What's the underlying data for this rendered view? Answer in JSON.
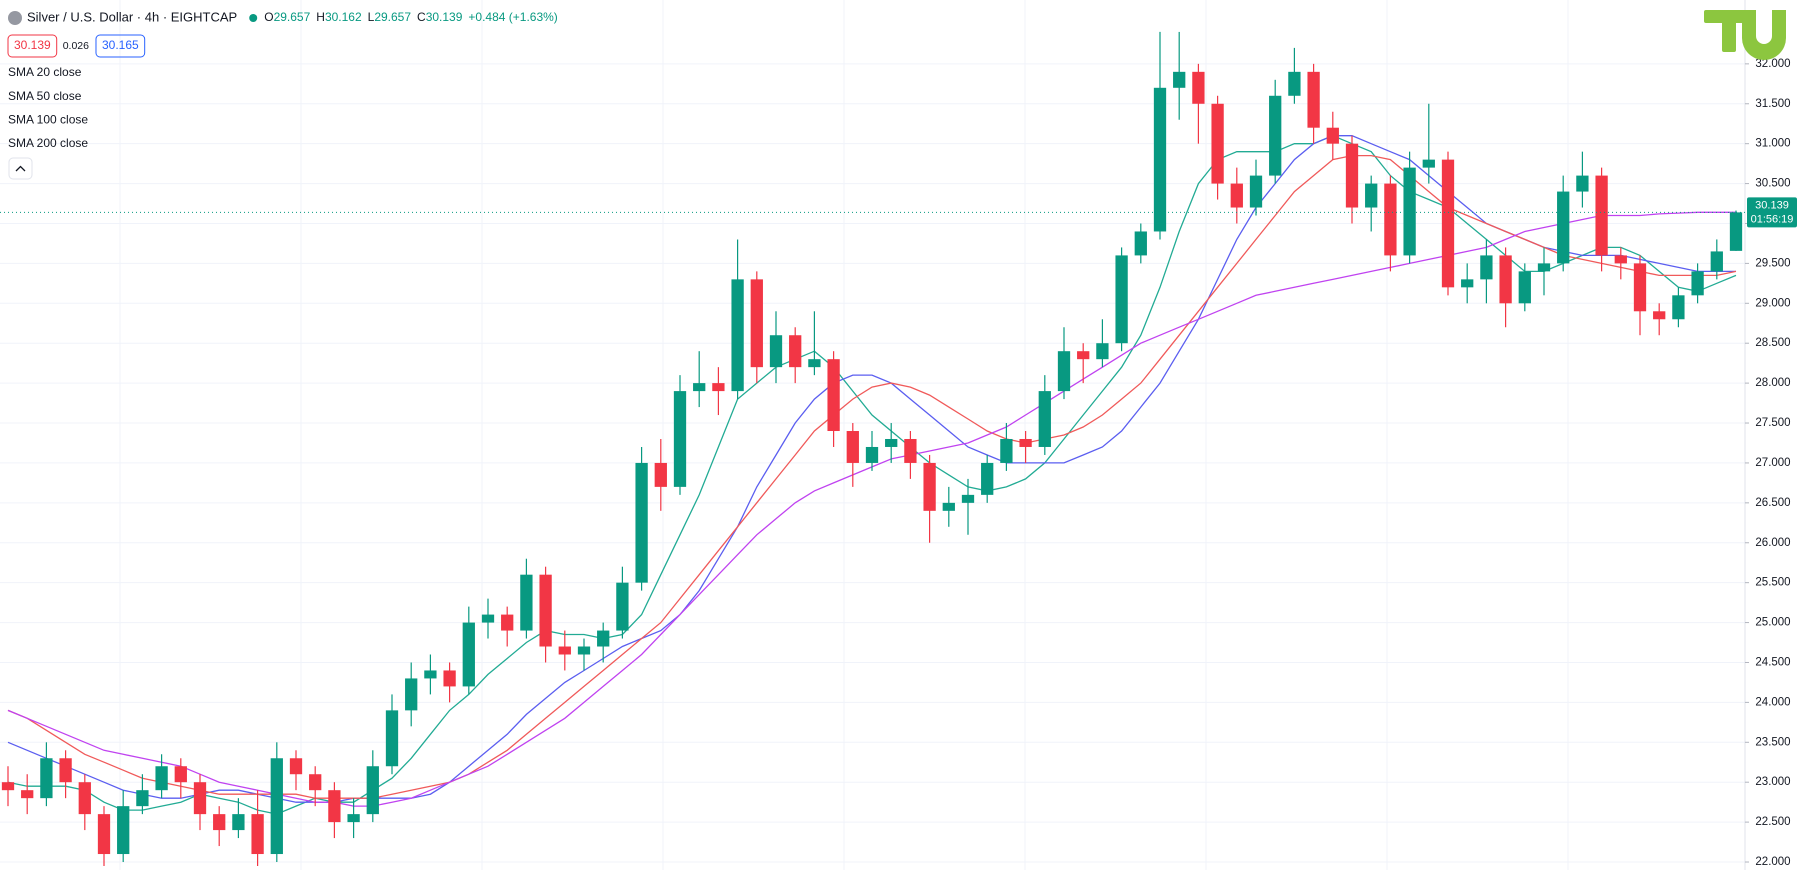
{
  "chart_data": {
    "type": "candlestick",
    "title": "Silver / U.S. Dollar · 4h · EIGHTCAP",
    "ohlc_labels": [
      "O",
      "H",
      "L",
      "C"
    ],
    "change": "+0.484 (+1.63%)",
    "quote": {
      "bid": "30.139",
      "spread": "0.026",
      "ask": "30.165"
    },
    "countdown": "01:56:19",
    "up_color": "#089981",
    "down_color": "#f23645",
    "grid": true,
    "ylim": [
      21.9,
      32.8
    ],
    "yticks": [
      {
        "value": 22,
        "label": "22.000"
      },
      {
        "value": 22.5,
        "label": "22.500"
      },
      {
        "value": 23,
        "label": "23.000"
      },
      {
        "value": 23.5,
        "label": "23.500"
      },
      {
        "value": 24,
        "label": "24.000"
      },
      {
        "value": 24.5,
        "label": "24.500"
      },
      {
        "value": 25,
        "label": "25.000"
      },
      {
        "value": 25.5,
        "label": "25.500"
      },
      {
        "value": 26,
        "label": "26.000"
      },
      {
        "value": 26.5,
        "label": "26.500"
      },
      {
        "value": 27,
        "label": "27.000"
      },
      {
        "value": 27.5,
        "label": "27.500"
      },
      {
        "value": 28,
        "label": "28.000"
      },
      {
        "value": 28.5,
        "label": "28.500"
      },
      {
        "value": 29,
        "label": "29.000"
      },
      {
        "value": 29.5,
        "label": "29.500"
      },
      {
        "value": 30,
        "label": "30.000"
      },
      {
        "value": 30.5,
        "label": "30.500"
      },
      {
        "value": 31,
        "label": "31.000"
      },
      {
        "value": 31.5,
        "label": "31.500"
      },
      {
        "value": 32,
        "label": "32.000"
      }
    ],
    "open": [
      23.0,
      22.9,
      22.8,
      23.3,
      23.0,
      22.6,
      22.1,
      22.7,
      22.9,
      23.2,
      23.0,
      22.6,
      22.4,
      22.6,
      22.1,
      23.3,
      23.1,
      22.9,
      22.5,
      22.6,
      23.2,
      23.9,
      24.3,
      24.4,
      24.2,
      25.0,
      25.1,
      24.9,
      25.6,
      24.7,
      24.6,
      24.7,
      24.9,
      25.5,
      27.0,
      26.7,
      27.9,
      28.0,
      27.9,
      29.3,
      28.2,
      28.6,
      28.2,
      28.3,
      27.4,
      27.0,
      27.2,
      27.3,
      27.0,
      26.4,
      26.5,
      26.6,
      27.0,
      27.3,
      27.2,
      27.9,
      28.4,
      28.3,
      28.5,
      29.6,
      29.9,
      31.7,
      31.9,
      31.5,
      30.5,
      30.2,
      30.6,
      31.6,
      31.9,
      31.2,
      31.0,
      30.2,
      30.5,
      29.6,
      30.7,
      30.8,
      29.2,
      29.3,
      29.6,
      29.0,
      29.4,
      29.5,
      30.4,
      30.6,
      29.6,
      29.5,
      28.9,
      28.8,
      29.1,
      29.4,
      29.657
    ],
    "high": [
      23.2,
      23.1,
      23.5,
      23.4,
      23.1,
      22.7,
      22.9,
      23.1,
      23.35,
      23.3,
      23.1,
      22.7,
      22.8,
      22.9,
      23.5,
      23.4,
      23.2,
      23.0,
      22.8,
      23.4,
      24.1,
      24.5,
      24.6,
      24.5,
      25.2,
      25.3,
      25.2,
      25.8,
      25.7,
      24.9,
      24.8,
      25.0,
      25.7,
      27.2,
      27.3,
      28.1,
      28.4,
      28.2,
      29.8,
      29.4,
      28.9,
      28.7,
      28.9,
      28.4,
      27.5,
      27.4,
      27.5,
      27.4,
      27.1,
      26.7,
      26.8,
      27.1,
      27.5,
      27.4,
      28.1,
      28.7,
      28.5,
      28.8,
      29.7,
      30.0,
      32.4,
      32.4,
      32.0,
      31.6,
      30.7,
      30.8,
      31.8,
      32.2,
      32.0,
      31.4,
      31.1,
      30.6,
      30.6,
      30.9,
      31.5,
      30.9,
      29.5,
      29.8,
      29.7,
      29.5,
      29.7,
      30.6,
      30.9,
      30.7,
      29.7,
      29.6,
      29.0,
      29.2,
      29.5,
      29.8,
      30.162
    ],
    "low": [
      22.7,
      22.6,
      22.7,
      22.8,
      22.4,
      21.95,
      22.0,
      22.6,
      22.8,
      22.8,
      22.4,
      22.2,
      22.3,
      21.95,
      22.0,
      22.9,
      22.7,
      22.3,
      22.3,
      22.5,
      23.1,
      23.7,
      24.1,
      24.0,
      24.1,
      24.8,
      24.7,
      24.8,
      24.5,
      24.4,
      24.4,
      24.5,
      24.8,
      25.4,
      26.4,
      26.6,
      27.7,
      27.6,
      27.8,
      28.0,
      28.0,
      28.0,
      28.1,
      27.2,
      26.7,
      26.9,
      27.0,
      26.8,
      26.0,
      26.2,
      26.1,
      26.5,
      26.9,
      27.0,
      27.1,
      27.8,
      28.0,
      28.2,
      28.4,
      29.5,
      29.8,
      31.3,
      31.0,
      30.3,
      30.0,
      30.1,
      30.5,
      31.5,
      31.0,
      30.8,
      30.0,
      29.9,
      29.4,
      29.5,
      30.5,
      29.1,
      29.0,
      29.0,
      28.7,
      28.9,
      29.1,
      29.4,
      30.2,
      29.4,
      29.3,
      28.6,
      28.6,
      28.7,
      29.0,
      29.3,
      29.657
    ],
    "close": [
      22.9,
      22.8,
      23.3,
      23.0,
      22.6,
      22.1,
      22.7,
      22.9,
      23.2,
      23.0,
      22.6,
      22.4,
      22.6,
      22.1,
      23.3,
      23.1,
      22.9,
      22.5,
      22.6,
      23.2,
      23.9,
      24.3,
      24.4,
      24.2,
      25.0,
      25.1,
      24.9,
      25.6,
      24.7,
      24.6,
      24.7,
      24.9,
      25.5,
      27.0,
      26.7,
      27.9,
      28.0,
      27.9,
      29.3,
      28.2,
      28.6,
      28.2,
      28.3,
      27.4,
      27.0,
      27.2,
      27.3,
      27.0,
      26.4,
      26.5,
      26.6,
      27.0,
      27.3,
      27.2,
      27.9,
      28.4,
      28.3,
      28.5,
      29.6,
      29.9,
      31.7,
      31.9,
      31.5,
      30.5,
      30.2,
      30.6,
      31.6,
      31.9,
      31.2,
      31.0,
      30.2,
      30.5,
      29.6,
      30.7,
      30.8,
      29.2,
      29.3,
      29.6,
      29.0,
      29.4,
      29.5,
      30.4,
      30.6,
      29.6,
      29.5,
      28.9,
      28.8,
      29.1,
      29.4,
      29.65,
      30.139
    ],
    "series": [
      {
        "name": "SMA 20 close",
        "color": "#22ab94",
        "values": [
          23.0,
          22.95,
          22.95,
          22.95,
          22.9,
          22.75,
          22.65,
          22.65,
          22.7,
          22.75,
          22.85,
          22.8,
          22.75,
          22.65,
          22.6,
          22.7,
          22.8,
          22.75,
          22.75,
          22.9,
          23.05,
          23.3,
          23.6,
          23.9,
          24.1,
          24.35,
          24.55,
          24.75,
          24.9,
          24.85,
          24.85,
          24.8,
          24.85,
          25.1,
          25.6,
          26.1,
          26.6,
          27.2,
          27.8,
          28.0,
          28.2,
          28.3,
          28.4,
          28.2,
          27.9,
          27.6,
          27.4,
          27.2,
          27.0,
          26.85,
          26.7,
          26.65,
          26.7,
          26.8,
          27.0,
          27.3,
          27.6,
          27.9,
          28.2,
          28.6,
          29.2,
          29.9,
          30.5,
          30.8,
          30.9,
          30.9,
          30.9,
          31.0,
          31.0,
          31.1,
          31.0,
          30.9,
          30.6,
          30.4,
          30.3,
          30.2,
          30.0,
          29.8,
          29.6,
          29.4,
          29.4,
          29.5,
          29.6,
          29.7,
          29.7,
          29.6,
          29.4,
          29.2,
          29.15,
          29.25,
          29.35
        ]
      },
      {
        "name": "SMA 50 close",
        "color": "#5b5ef0",
        "values": [
          23.5,
          23.4,
          23.3,
          23.2,
          23.1,
          23.0,
          22.9,
          22.85,
          22.8,
          22.8,
          22.85,
          22.9,
          22.9,
          22.85,
          22.8,
          22.75,
          22.75,
          22.75,
          22.8,
          22.8,
          22.8,
          22.8,
          22.85,
          23.0,
          23.2,
          23.4,
          23.6,
          23.85,
          24.05,
          24.25,
          24.4,
          24.55,
          24.7,
          24.8,
          24.9,
          25.1,
          25.4,
          25.8,
          26.2,
          26.7,
          27.1,
          27.5,
          27.8,
          28.0,
          28.1,
          28.1,
          28.0,
          27.8,
          27.6,
          27.4,
          27.2,
          27.1,
          27.0,
          27.0,
          27.0,
          27.0,
          27.1,
          27.2,
          27.4,
          27.7,
          28.0,
          28.4,
          28.8,
          29.3,
          29.8,
          30.2,
          30.5,
          30.8,
          31.0,
          31.1,
          31.1,
          31.0,
          30.9,
          30.8,
          30.6,
          30.4,
          30.2,
          30.0,
          29.9,
          29.8,
          29.7,
          29.65,
          29.6,
          29.6,
          29.6,
          29.55,
          29.5,
          29.45,
          29.4,
          29.4,
          29.4
        ]
      },
      {
        "name": "SMA 100 close",
        "color": "#f05a5a",
        "values": [
          23.9,
          23.8,
          23.65,
          23.5,
          23.35,
          23.25,
          23.15,
          23.05,
          23.0,
          22.95,
          22.9,
          22.85,
          22.85,
          22.85,
          22.85,
          22.85,
          22.8,
          22.8,
          22.8,
          22.8,
          22.85,
          22.9,
          22.95,
          23.0,
          23.1,
          23.25,
          23.4,
          23.6,
          23.8,
          24.0,
          24.2,
          24.4,
          24.6,
          24.8,
          25.0,
          25.3,
          25.6,
          25.9,
          26.2,
          26.5,
          26.8,
          27.1,
          27.4,
          27.6,
          27.8,
          27.95,
          28.0,
          27.95,
          27.85,
          27.7,
          27.55,
          27.4,
          27.3,
          27.25,
          27.3,
          27.35,
          27.45,
          27.6,
          27.8,
          28.0,
          28.3,
          28.6,
          28.9,
          29.2,
          29.5,
          29.8,
          30.1,
          30.4,
          30.6,
          30.8,
          30.85,
          30.85,
          30.8,
          30.6,
          30.4,
          30.2,
          30.1,
          30.0,
          29.9,
          29.8,
          29.7,
          29.6,
          29.55,
          29.5,
          29.45,
          29.4,
          29.35,
          29.35,
          29.35,
          29.35,
          29.4
        ]
      },
      {
        "name": "SMA 200 close",
        "color": "#c043f0",
        "values": [
          23.9,
          23.8,
          23.7,
          23.6,
          23.5,
          23.4,
          23.35,
          23.3,
          23.25,
          23.2,
          23.1,
          23.0,
          22.95,
          22.9,
          22.85,
          22.8,
          22.75,
          22.75,
          22.7,
          22.7,
          22.75,
          22.8,
          22.9,
          23.0,
          23.1,
          23.2,
          23.35,
          23.5,
          23.65,
          23.8,
          24.0,
          24.2,
          24.4,
          24.6,
          24.85,
          25.1,
          25.35,
          25.6,
          25.85,
          26.1,
          26.3,
          26.5,
          26.65,
          26.75,
          26.85,
          26.95,
          27.05,
          27.1,
          27.15,
          27.2,
          27.25,
          27.35,
          27.45,
          27.6,
          27.75,
          27.9,
          28.05,
          28.2,
          28.35,
          28.5,
          28.6,
          28.7,
          28.8,
          28.9,
          29.0,
          29.1,
          29.15,
          29.2,
          29.25,
          29.3,
          29.35,
          29.4,
          29.45,
          29.5,
          29.55,
          29.6,
          29.65,
          29.7,
          29.8,
          29.9,
          29.95,
          30.0,
          30.05,
          30.1,
          30.1,
          30.1,
          30.12,
          30.13,
          30.14,
          30.14,
          30.14
        ]
      }
    ]
  }
}
